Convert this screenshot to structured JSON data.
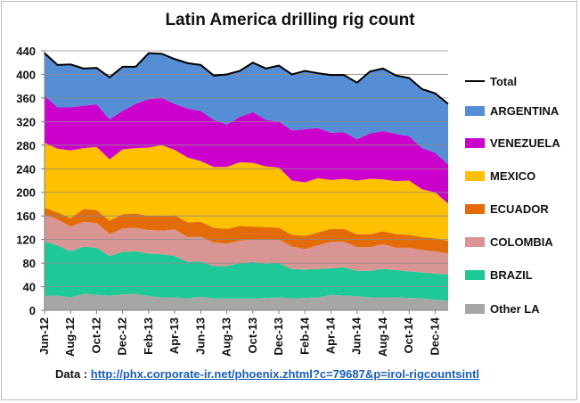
{
  "chart_data": {
    "type": "area",
    "stacked": true,
    "title": "Latin America drilling  rig count",
    "ylim": [
      0,
      440
    ],
    "yticks": [
      0,
      40,
      80,
      120,
      160,
      200,
      240,
      280,
      320,
      360,
      400,
      440
    ],
    "grid": true,
    "legend_position": "right",
    "x": [
      "Jun-12",
      "Jul-12",
      "Aug-12",
      "Sep-12",
      "Oct-12",
      "Nov-12",
      "Dec-12",
      "Jan-13",
      "Feb-13",
      "Mar-13",
      "Apr-13",
      "May-13",
      "Jun-13",
      "Jul-13",
      "Aug-13",
      "Sep-13",
      "Oct-13",
      "Nov-13",
      "Dec-13",
      "Jan-14",
      "Feb-14",
      "Mar-14",
      "Apr-14",
      "May-14",
      "Jun-14",
      "Jul-14",
      "Aug-14",
      "Sep-14",
      "Oct-14",
      "Nov-14",
      "Dec-14",
      "Jan-15"
    ],
    "x_tick_labels": [
      "Jun-12",
      "Aug-12",
      "Oct-12",
      "Dec-12",
      "Feb-13",
      "Apr-13",
      "Jun-13",
      "Aug-13",
      "Oct-13",
      "Dec-13",
      "Feb-14",
      "Apr-14",
      "Jun-14",
      "Aug-14",
      "Oct-14",
      "Dec-14"
    ],
    "series": [
      {
        "name": "Other LA",
        "color": "#a6a6a6",
        "values": [
          25,
          25,
          22,
          28,
          26,
          25,
          27,
          28,
          24,
          22,
          22,
          20,
          23,
          20,
          20,
          20,
          20,
          21,
          22,
          20,
          21,
          22,
          26,
          25,
          24,
          22,
          22,
          22,
          21,
          20,
          18,
          16
        ]
      },
      {
        "name": "BRAZIL",
        "color": "#1ec997",
        "values": [
          92,
          85,
          78,
          80,
          80,
          67,
          72,
          72,
          72,
          73,
          70,
          62,
          60,
          55,
          55,
          60,
          62,
          58,
          58,
          50,
          48,
          48,
          45,
          48,
          43,
          45,
          48,
          46,
          45,
          44,
          44,
          45
        ]
      },
      {
        "name": "COLOMBIA",
        "color": "#d99594",
        "values": [
          45,
          44,
          42,
          42,
          42,
          37,
          40,
          40,
          40,
          40,
          45,
          42,
          42,
          40,
          38,
          38,
          38,
          40,
          40,
          38,
          35,
          40,
          45,
          43,
          40,
          40,
          42,
          38,
          40,
          38,
          38,
          35
        ]
      },
      {
        "name": "ECUADOR",
        "color": "#e36c09",
        "values": [
          12,
          12,
          14,
          22,
          22,
          23,
          24,
          24,
          24,
          25,
          24,
          25,
          25,
          25,
          25,
          25,
          22,
          22,
          20,
          20,
          22,
          22,
          22,
          22,
          22,
          22,
          22,
          23,
          22,
          22,
          22,
          22
        ]
      },
      {
        "name": "MEXICO",
        "color": "#ffc000",
        "values": [
          110,
          108,
          115,
          103,
          107,
          104,
          110,
          111,
          116,
          120,
          111,
          110,
          103,
          103,
          105,
          108,
          108,
          103,
          102,
          92,
          91,
          92,
          83,
          85,
          91,
          94,
          88,
          90,
          92,
          81,
          78,
          63
        ]
      },
      {
        "name": "VENEZUELA",
        "color": "#cc00cc",
        "values": [
          80,
          70,
          73,
          72,
          72,
          68,
          65,
          75,
          82,
          80,
          78,
          83,
          85,
          80,
          72,
          77,
          86,
          79,
          78,
          85,
          90,
          85,
          80,
          79,
          70,
          77,
          82,
          80,
          75,
          70,
          67,
          66
        ]
      },
      {
        "name": "ARGENTINA",
        "color": "#558ed5",
        "values": [
          72,
          72,
          73,
          63,
          62,
          71,
          75,
          63,
          78,
          75,
          76,
          77,
          78,
          75,
          85,
          78,
          84,
          87,
          95,
          95,
          99,
          93,
          98,
          97,
          96,
          105,
          106,
          99,
          99,
          100,
          101,
          103
        ]
      }
    ],
    "total": {
      "name": "Total",
      "values": [
        436,
        416,
        417,
        410,
        411,
        395,
        413,
        413,
        436,
        435,
        426,
        419,
        416,
        398,
        400,
        406,
        420,
        410,
        415,
        400,
        406,
        402,
        399,
        399,
        386,
        405,
        410,
        398,
        394,
        375,
        368,
        350
      ]
    }
  },
  "source_label": "Data :",
  "source_link": "http://phx.corporate-ir.net/phoenix.zhtml?c=79687&p=irol-rigcountsintl"
}
